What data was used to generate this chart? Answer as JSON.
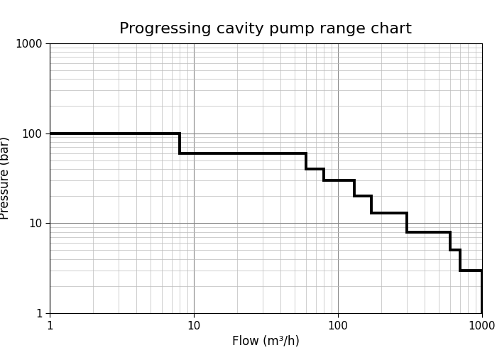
{
  "title": "Progressing cavity pump range chart",
  "xlabel": "Flow (m³/h)",
  "ylabel": "Pressure (bar)",
  "xlim": [
    1,
    1000
  ],
  "ylim": [
    1,
    1000
  ],
  "line_color": "#000000",
  "line_width": 2.8,
  "background_color": "#ffffff",
  "grid_major_color": "#888888",
  "grid_minor_color": "#bbbbbb",
  "staircase_x": [
    1,
    8,
    8,
    60,
    60,
    80,
    80,
    130,
    130,
    170,
    170,
    300,
    300,
    600,
    600,
    700,
    700,
    1000,
    1000
  ],
  "staircase_y": [
    100,
    100,
    60,
    60,
    40,
    40,
    30,
    30,
    20,
    20,
    13,
    13,
    8,
    8,
    5,
    5,
    3,
    3,
    1
  ],
  "title_fontsize": 16,
  "label_fontsize": 12,
  "tick_fontsize": 11
}
